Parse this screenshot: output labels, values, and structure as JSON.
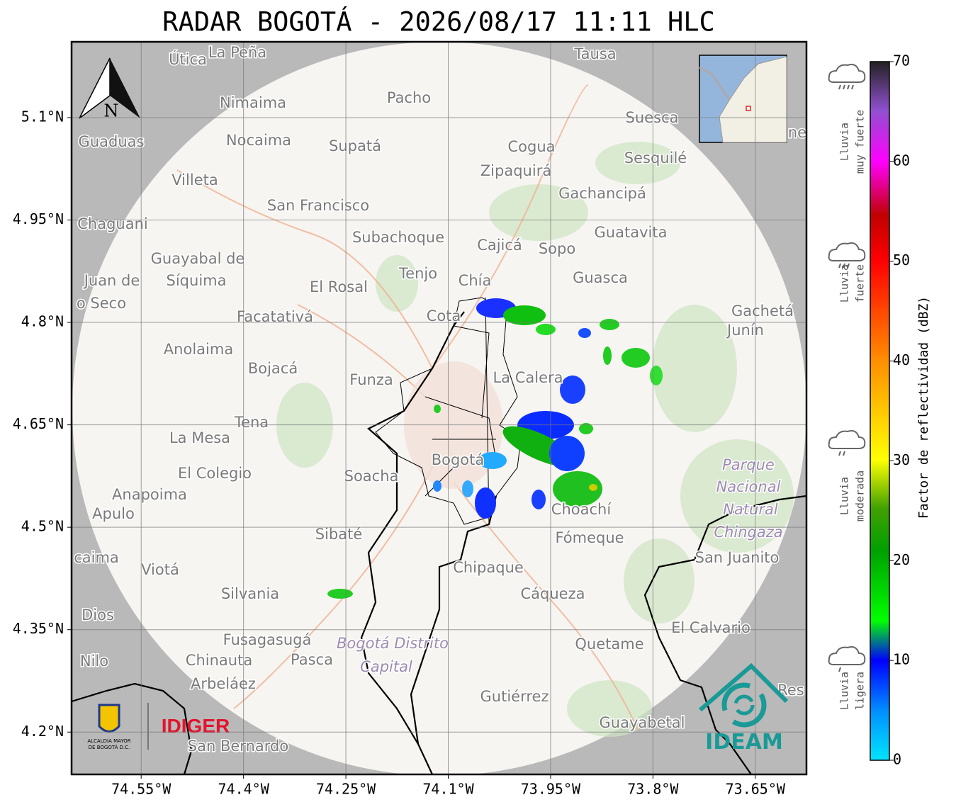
{
  "title": "RADAR BOGOTÁ - 2026/08/17 11:11 HLC",
  "axes": {
    "xlim": [
      -74.652,
      -73.575
    ],
    "ylim": [
      4.138,
      5.211
    ],
    "xticks": [
      {
        "value": -74.55,
        "label": "74.55°W"
      },
      {
        "value": -74.4,
        "label": "74.4°W"
      },
      {
        "value": -74.25,
        "label": "74.25°W"
      },
      {
        "value": -74.1,
        "label": "74.1°W"
      },
      {
        "value": -73.95,
        "label": "73.95°W"
      },
      {
        "value": -73.8,
        "label": "73.8°W"
      },
      {
        "value": -73.65,
        "label": "73.65°W"
      }
    ],
    "yticks": [
      {
        "value": 5.1,
        "label": "5.1°N"
      },
      {
        "value": 4.95,
        "label": "4.95°N"
      },
      {
        "value": 4.8,
        "label": "4.8°N"
      },
      {
        "value": 4.65,
        "label": "4.65°N"
      },
      {
        "value": 4.5,
        "label": "4.5°N"
      },
      {
        "value": 4.35,
        "label": "4.35°N"
      },
      {
        "value": 4.2,
        "label": "4.2°N"
      }
    ],
    "grid": true
  },
  "north": "N",
  "colorbar": {
    "label": "Factor de reflectividad (dBZ)",
    "lim": [
      0,
      70
    ],
    "ticks": [
      0,
      10,
      20,
      30,
      40,
      50,
      60,
      70
    ]
  },
  "rain_legend": [
    {
      "lines": [
        "Lluvia",
        "muy fuerte"
      ]
    },
    {
      "lines": [
        "Lluvia",
        "fuerte"
      ]
    },
    {
      "lines": [
        "Lluvia",
        "moderada"
      ]
    },
    {
      "lines": [
        "Lluvia",
        "ligera"
      ]
    }
  ],
  "places": [
    "Útica",
    "La Peña",
    "Tausa",
    "Pacho",
    "Nimaima",
    "Suesca",
    "Guaduas",
    "Nocaima",
    "Supatá",
    "Cogua",
    "Sesquilé",
    "ne",
    "Zipaquirá",
    "Villeta",
    "Gachancipá",
    "San Francisco",
    "Chaguani",
    "Guatavita",
    "Subachoque",
    "Cajicá",
    "Sopo",
    "Guayabal de",
    "Tenjo",
    "Síquima",
    "Juan de",
    "Chía",
    "Guasca",
    "El Rosal",
    "o Seco",
    "Cota",
    "Facatativá",
    "Gachetá",
    "Junín",
    "Anolaima",
    "Bojacá",
    "La Calera",
    "Funza",
    "Tena",
    "La Mesa",
    "Parque",
    "El Colegio",
    "Soacha",
    "Bogotá",
    "Nacional",
    "Anapoima",
    "Natural",
    "Choachí",
    "Apulo",
    "Chingaza",
    "Sibaté",
    "Fómeque",
    "San Juanito",
    "caima",
    "Viotá",
    "Chipaque",
    "Silvania",
    "Cáqueza",
    "Dios",
    "El Calvario",
    "Fusagasugá",
    "Bogotá Distrito",
    "Quetame",
    "Nilo",
    "Chinauta",
    "Pasca",
    "Capital",
    "Arbeláez",
    "Gutiérrez",
    "Res",
    "Guayabetal",
    "San Bernardo"
  ],
  "logos": {
    "alcaldia": [
      "ALCALDÍA MAYOR",
      "DE BOGOTÁ D.C."
    ],
    "idiger": "IDIGER",
    "ideam": "IDEAM"
  }
}
